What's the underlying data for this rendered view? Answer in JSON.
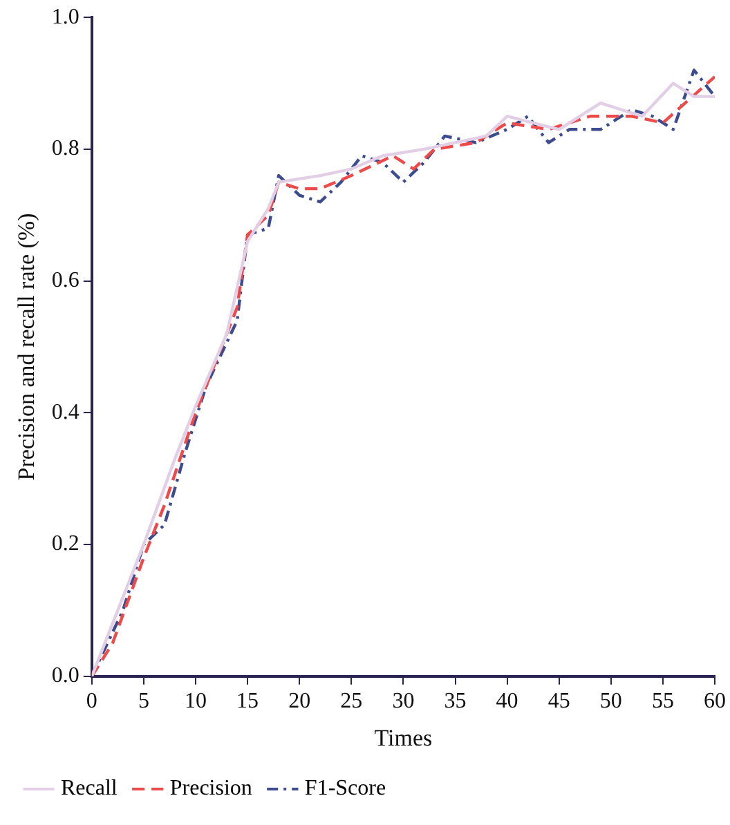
{
  "chart_data": {
    "type": "line",
    "xlabel": "Times",
    "ylabel": "Precision and recall rate (%)",
    "xlim": [
      0,
      60
    ],
    "ylim": [
      0,
      1
    ],
    "xticks": [
      0,
      5,
      10,
      15,
      20,
      25,
      30,
      35,
      40,
      45,
      50,
      55,
      60
    ],
    "yticks": [
      {
        "value": 0,
        "label": "0.0"
      },
      {
        "value": 0.2,
        "label": "0.2"
      },
      {
        "value": 0.4,
        "label": "0.4"
      },
      {
        "value": 0.6,
        "label": "0.6"
      },
      {
        "value": 0.8,
        "label": "0.8"
      },
      {
        "value": 1,
        "label": "1.0"
      }
    ],
    "grid": false,
    "legend": "bottom left",
    "marker": "none",
    "series": [
      {
        "name": "Recall",
        "color": "#e2cfe6",
        "line_style": "solid",
        "x": [
          0,
          5,
          8,
          10,
          13,
          15,
          17,
          18,
          22,
          25,
          28,
          32,
          35,
          38,
          40,
          45,
          49,
          53,
          56,
          58,
          60
        ],
        "values": [
          0,
          0.2,
          0.33,
          0.41,
          0.52,
          0.66,
          0.71,
          0.75,
          0.76,
          0.77,
          0.79,
          0.8,
          0.81,
          0.82,
          0.85,
          0.83,
          0.87,
          0.85,
          0.9,
          0.88,
          0.88
        ]
      },
      {
        "name": "Precision",
        "color": "#ee4a4a",
        "line_style": "dashed",
        "x": [
          0,
          2,
          5,
          7,
          10,
          14,
          15,
          17,
          18,
          20,
          22,
          25,
          29,
          31,
          33,
          37,
          40,
          44,
          48,
          52,
          55,
          60
        ],
        "values": [
          0,
          0.05,
          0.18,
          0.26,
          0.4,
          0.56,
          0.67,
          0.7,
          0.75,
          0.74,
          0.74,
          0.76,
          0.79,
          0.77,
          0.8,
          0.81,
          0.84,
          0.83,
          0.85,
          0.85,
          0.84,
          0.91
        ]
      },
      {
        "name": "F1-Score",
        "color": "#3d4b8f",
        "line_style": "dashdot",
        "x": [
          0,
          3,
          5,
          7,
          9,
          11,
          14,
          15,
          17,
          18,
          20,
          22,
          24,
          26,
          28,
          30,
          32,
          34,
          37,
          40,
          42,
          44,
          46,
          49,
          52,
          54,
          56,
          58,
          60
        ],
        "values": [
          0,
          0.1,
          0.2,
          0.23,
          0.34,
          0.44,
          0.54,
          0.67,
          0.68,
          0.76,
          0.73,
          0.72,
          0.75,
          0.79,
          0.78,
          0.75,
          0.78,
          0.82,
          0.81,
          0.83,
          0.85,
          0.81,
          0.83,
          0.83,
          0.86,
          0.85,
          0.83,
          0.92,
          0.88
        ]
      }
    ]
  }
}
